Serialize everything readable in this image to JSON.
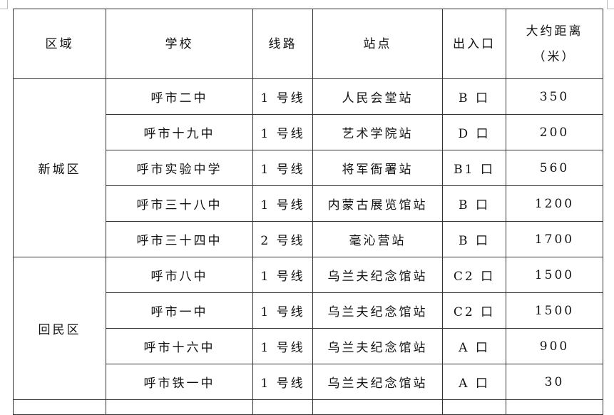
{
  "headers": [
    "区域",
    "学校",
    "线路",
    "站点",
    "出入口",
    "大约距离",
    "（米）"
  ],
  "groups": [
    {
      "district": "新城区",
      "rows": [
        [
          "呼市二中",
          "1 号线",
          "人民会堂站",
          "B 口",
          "350"
        ],
        [
          "呼市十九中",
          "1 号线",
          "艺术学院站",
          "D 口",
          "200"
        ],
        [
          "呼市实验中学",
          "1 号线",
          "将军衙署站",
          "B1 口",
          "560"
        ],
        [
          "呼市三十八中",
          "1 号线",
          "内蒙古展览馆站",
          "B 口",
          "1200"
        ],
        [
          "呼市三十四中",
          "2 号线",
          "毫沁营站",
          "B 口",
          "1700"
        ]
      ]
    },
    {
      "district": "回民区",
      "rows": [
        [
          "呼市八中",
          "1 号线",
          "乌兰夫纪念馆站",
          "C2 口",
          "1500"
        ],
        [
          "呼市一中",
          "1 号线",
          "乌兰夫纪念馆站",
          "C2 口",
          "1500"
        ],
        [
          "呼市十六中",
          "1 号线",
          "乌兰夫纪念馆站",
          "A 口",
          "900"
        ],
        [
          "呼市铁一中",
          "1 号线",
          "乌兰夫纪念馆站",
          "A 口",
          "30"
        ]
      ]
    }
  ]
}
